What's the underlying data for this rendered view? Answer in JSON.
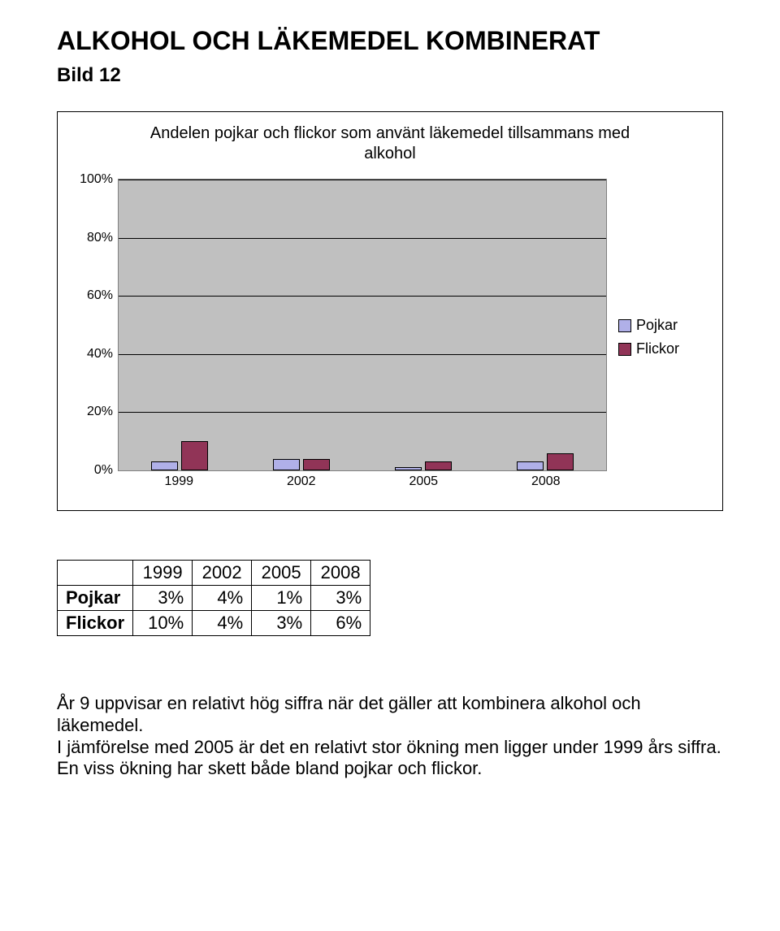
{
  "page": {
    "title": "ALKOHOL OCH LÄKEMEDEL KOMBINERAT",
    "subtitle": "Bild 12"
  },
  "chart": {
    "title_line1": "Andelen pojkar och flickor som använt läkemedel tillsammans med",
    "title_line2": "alkohol",
    "type": "bar",
    "categories": [
      "1999",
      "2002",
      "2005",
      "2008"
    ],
    "series": [
      {
        "name": "Pojkar",
        "color": "#b0b0e8",
        "legend_label": "Pojkar",
        "values": [
          3,
          4,
          1,
          3
        ]
      },
      {
        "name": "Flickor",
        "color": "#913457",
        "legend_label": "Flickor",
        "values": [
          10,
          4,
          3,
          6
        ]
      }
    ],
    "ylim": [
      0,
      100
    ],
    "ytick_step": 20,
    "yticks": [
      "0%",
      "20%",
      "40%",
      "60%",
      "80%",
      "100%"
    ],
    "background_color": "#c0c0c0",
    "grid_color": "#000000",
    "bar_border_color": "#000000",
    "bar_group_width_pct": 16,
    "bar_width_pct": 5.5
  },
  "table": {
    "columns": [
      "1999",
      "2002",
      "2005",
      "2008"
    ],
    "rows": [
      {
        "label": "Pojkar",
        "values": [
          "3%",
          "4%",
          "1%",
          "3%"
        ]
      },
      {
        "label": "Flickor",
        "values": [
          "10%",
          "4%",
          "3%",
          "6%"
        ]
      }
    ]
  },
  "body": {
    "p1": "År 9 uppvisar en relativt hög siffra när det gäller att kombinera alkohol och läkemedel.",
    "p2a": "I jämförelse med 2005 är det en relativt stor ökning men ligger under 1999 års siffra.",
    "p2b": "En viss ökning har skett både bland pojkar och flickor."
  }
}
